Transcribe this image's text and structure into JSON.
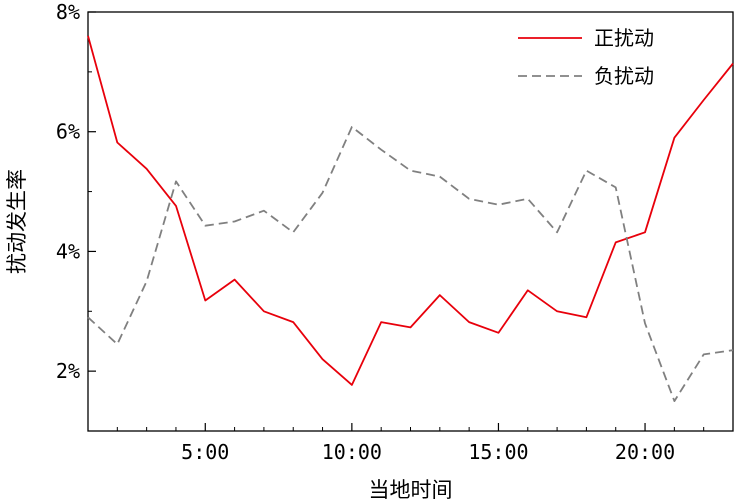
{
  "chart_data": {
    "type": "line",
    "x": [
      1,
      2,
      3,
      4,
      5,
      6,
      7,
      8,
      9,
      10,
      11,
      12,
      13,
      14,
      15,
      16,
      17,
      18,
      19,
      20,
      21,
      22,
      23
    ],
    "xlim": [
      1,
      23
    ],
    "ylim": [
      1,
      8
    ],
    "x_ticks": [
      5,
      10,
      15,
      20
    ],
    "x_tick_labels": [
      "5:00",
      "10:00",
      "15:00",
      "20:00"
    ],
    "y_ticks": [
      2,
      4,
      6,
      8
    ],
    "y_tick_labels": [
      "2%",
      "4%",
      "6%",
      "8%"
    ],
    "xlabel": "当地时间",
    "ylabel": "扰动发生率",
    "grid": false,
    "legend_position": "top-right",
    "series": [
      {
        "name": "正扰动",
        "color": "#e8000b",
        "dash": "solid",
        "values": [
          7.6,
          5.82,
          5.38,
          4.76,
          3.18,
          3.53,
          3.0,
          2.82,
          2.2,
          1.77,
          2.82,
          2.73,
          3.27,
          2.82,
          2.64,
          3.35,
          3.0,
          2.9,
          4.15,
          4.32,
          5.9,
          6.53,
          7.14
        ]
      },
      {
        "name": "负扰动",
        "color": "#808080",
        "dash": "dashed",
        "values": [
          2.9,
          2.45,
          3.5,
          5.17,
          4.43,
          4.5,
          4.68,
          4.32,
          4.98,
          6.08,
          5.7,
          5.35,
          5.25,
          4.88,
          4.78,
          4.88,
          4.32,
          5.35,
          5.07,
          2.8,
          1.5,
          2.28,
          2.35
        ]
      }
    ]
  }
}
